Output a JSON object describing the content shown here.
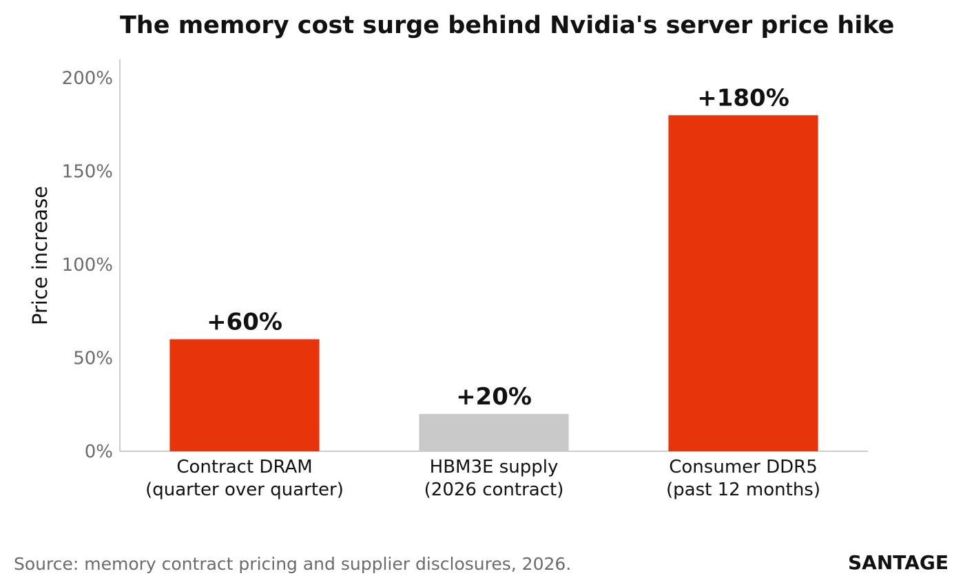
{
  "chart_data": {
    "type": "bar",
    "title": "The memory cost surge behind Nvidia's server price hike",
    "ylabel": "Price increase",
    "xlabel": "",
    "ylim": [
      0,
      210
    ],
    "yticks": [
      0,
      50,
      100,
      150,
      200
    ],
    "ytick_labels": [
      "0%",
      "50%",
      "100%",
      "150%",
      "200%"
    ],
    "categories": [
      [
        "Contract DRAM",
        "(quarter over quarter)"
      ],
      [
        "HBM3E supply",
        "(2026 contract)"
      ],
      [
        "Consumer DDR5",
        "(past 12 months)"
      ]
    ],
    "values": [
      60,
      20,
      180
    ],
    "data_labels": [
      "+60%",
      "+20%",
      "+180%"
    ],
    "bar_colors": [
      "#e8340b",
      "#c9c9c9",
      "#e8340b"
    ],
    "grid": false,
    "legend": "none"
  },
  "footer": {
    "source": "Source: memory contract pricing and supplier disclosures, 2026.",
    "brand": "SANTAGE"
  }
}
